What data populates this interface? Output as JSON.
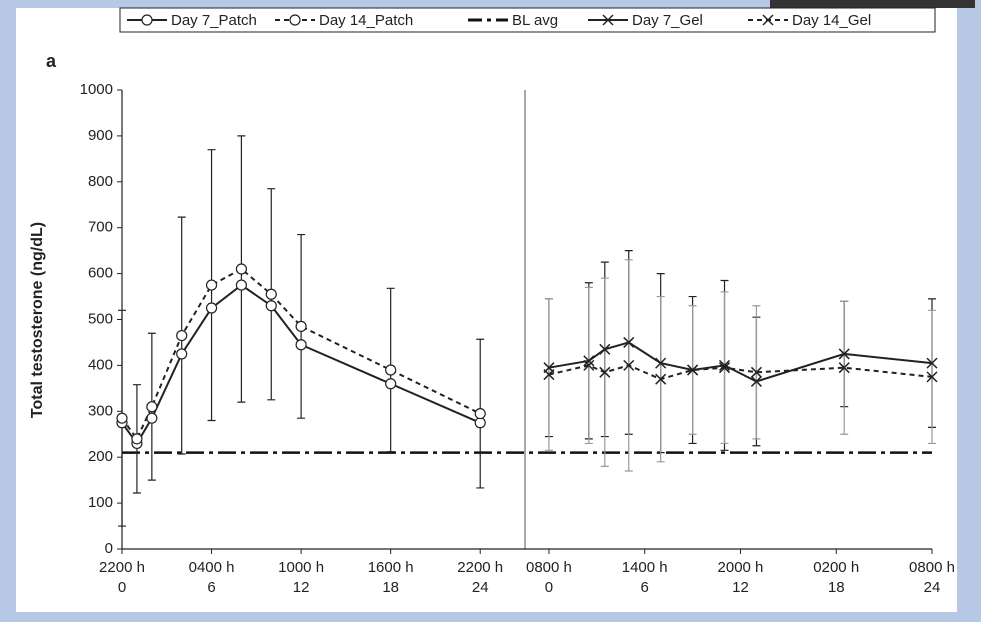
{
  "chart_data": [
    {
      "type": "line",
      "panel_label": "a",
      "y_label": "Total testosterone (ng/dL)",
      "x": [
        0,
        1,
        2,
        4,
        6,
        8,
        10,
        12,
        18,
        24
      ],
      "xlim": [
        0,
        27
      ],
      "xticks": [
        {
          "value": 0,
          "label": "2200 h"
        },
        {
          "value": 6,
          "label": "0400 h"
        },
        {
          "value": 12,
          "label": "1000 h"
        },
        {
          "value": 18,
          "label": "1600 h"
        },
        {
          "value": 24,
          "label": "2200 h"
        }
      ],
      "ylim": [
        0,
        1000
      ],
      "yticks": [
        0,
        100,
        200,
        300,
        400,
        500,
        600,
        700,
        800,
        900,
        1000
      ],
      "reference": {
        "name": "BL avg",
        "value": 210,
        "color": "#111111"
      },
      "series": [
        {
          "name": "Day 7_Patch",
          "color": "#222222",
          "line_style": "solid",
          "marker": "circle",
          "values": [
            275,
            230,
            285,
            425,
            525,
            575,
            530,
            445,
            360,
            275
          ]
        },
        {
          "name": "Day 14_Patch",
          "color": "#222222",
          "line_style": "dashed",
          "marker": "circle",
          "values": [
            285,
            240,
            310,
            465,
            575,
            610,
            555,
            485,
            390,
            295
          ],
          "errors": [
            235,
            118,
            160,
            258,
            295,
            290,
            230,
            200,
            178,
            162
          ],
          "error_color": "#222222"
        }
      ]
    },
    {
      "type": "line",
      "x": [
        0,
        2.5,
        3.5,
        5,
        7,
        9,
        11,
        13,
        18.5,
        24
      ],
      "xlim": [
        -1.5,
        24
      ],
      "xticks": [
        {
          "value": 0,
          "label": "0800 h"
        },
        {
          "value": 6,
          "label": "1400 h"
        },
        {
          "value": 12,
          "label": "2000 h"
        },
        {
          "value": 18,
          "label": "0200 h"
        },
        {
          "value": 24,
          "label": "0800 h"
        }
      ],
      "ylim": [
        0,
        1000
      ],
      "series": [
        {
          "name": "Day 7_Gel",
          "color": "#222222",
          "line_style": "solid",
          "marker": "x",
          "values": [
            395,
            410,
            435,
            450,
            405,
            390,
            400,
            365,
            425,
            405
          ],
          "errors": [
            150,
            170,
            190,
            200,
            195,
            160,
            185,
            140,
            115,
            140
          ],
          "error_color": "#222222"
        },
        {
          "name": "Day 14_Gel",
          "color": "#222222",
          "line_style": "dashed",
          "marker": "x",
          "values": [
            380,
            400,
            385,
            400,
            370,
            390,
            395,
            385,
            395,
            375
          ],
          "errors": [
            165,
            170,
            205,
            230,
            180,
            140,
            165,
            145,
            145,
            145
          ],
          "error_color": "#999999"
        }
      ]
    }
  ]
}
